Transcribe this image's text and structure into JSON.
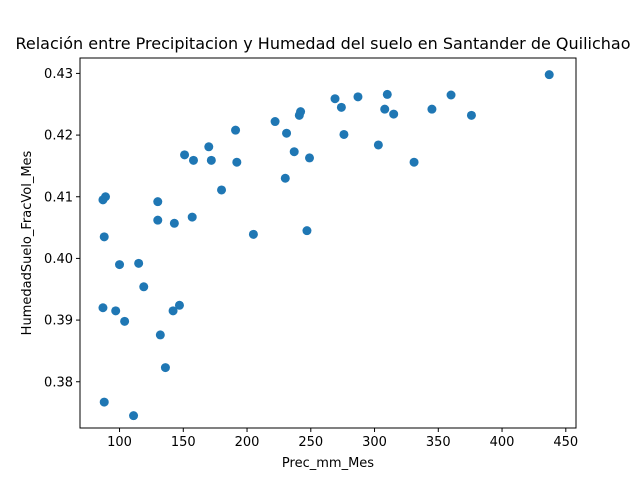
{
  "chart_data": {
    "type": "scatter",
    "title": "Relación entre Precipitacion  y Humedad del suelo en Santander de Quilichao",
    "xlabel": "Prec_mm_Mes",
    "ylabel": "HumedadSuelo_FracVol_Mes",
    "xlim": [
      69,
      458
    ],
    "ylim": [
      0.3725,
      0.4325
    ],
    "xticks": [
      100,
      150,
      200,
      250,
      300,
      350,
      400,
      450
    ],
    "yticks": [
      0.38,
      0.39,
      0.4,
      0.41,
      0.42,
      0.43
    ],
    "ytick_labels": [
      "0.38",
      "0.39",
      "0.40",
      "0.41",
      "0.42",
      "0.43"
    ],
    "grid": false,
    "color": "#1f77b4",
    "series": [
      {
        "points": [
          [
            87,
            0.4095
          ],
          [
            89,
            0.41
          ],
          [
            88,
            0.4035
          ],
          [
            87,
            0.392
          ],
          [
            88,
            0.3767
          ],
          [
            97,
            0.3915
          ],
          [
            100,
            0.399
          ],
          [
            104,
            0.3898
          ],
          [
            111,
            0.3745
          ],
          [
            115,
            0.3992
          ],
          [
            119,
            0.3954
          ],
          [
            130,
            0.4092
          ],
          [
            130,
            0.4062
          ],
          [
            132,
            0.3876
          ],
          [
            136,
            0.3823
          ],
          [
            142,
            0.3915
          ],
          [
            143,
            0.4057
          ],
          [
            147,
            0.3924
          ],
          [
            151,
            0.4168
          ],
          [
            157,
            0.4067
          ],
          [
            158,
            0.4159
          ],
          [
            170,
            0.4181
          ],
          [
            172,
            0.4159
          ],
          [
            180,
            0.4111
          ],
          [
            191,
            0.4208
          ],
          [
            192,
            0.4156
          ],
          [
            205,
            0.4039
          ],
          [
            222,
            0.4222
          ],
          [
            230,
            0.413
          ],
          [
            231,
            0.4203
          ],
          [
            237,
            0.4173
          ],
          [
            241,
            0.4232
          ],
          [
            242,
            0.4238
          ],
          [
            247,
            0.4045
          ],
          [
            249,
            0.4163
          ],
          [
            269,
            0.4259
          ],
          [
            274,
            0.4245
          ],
          [
            276,
            0.4201
          ],
          [
            287,
            0.4262
          ],
          [
            303,
            0.4184
          ],
          [
            308,
            0.4242
          ],
          [
            310,
            0.4266
          ],
          [
            315,
            0.4234
          ],
          [
            331,
            0.4156
          ],
          [
            345,
            0.4242
          ],
          [
            360,
            0.4265
          ],
          [
            376,
            0.4232
          ],
          [
            437,
            0.4298
          ]
        ]
      }
    ]
  }
}
